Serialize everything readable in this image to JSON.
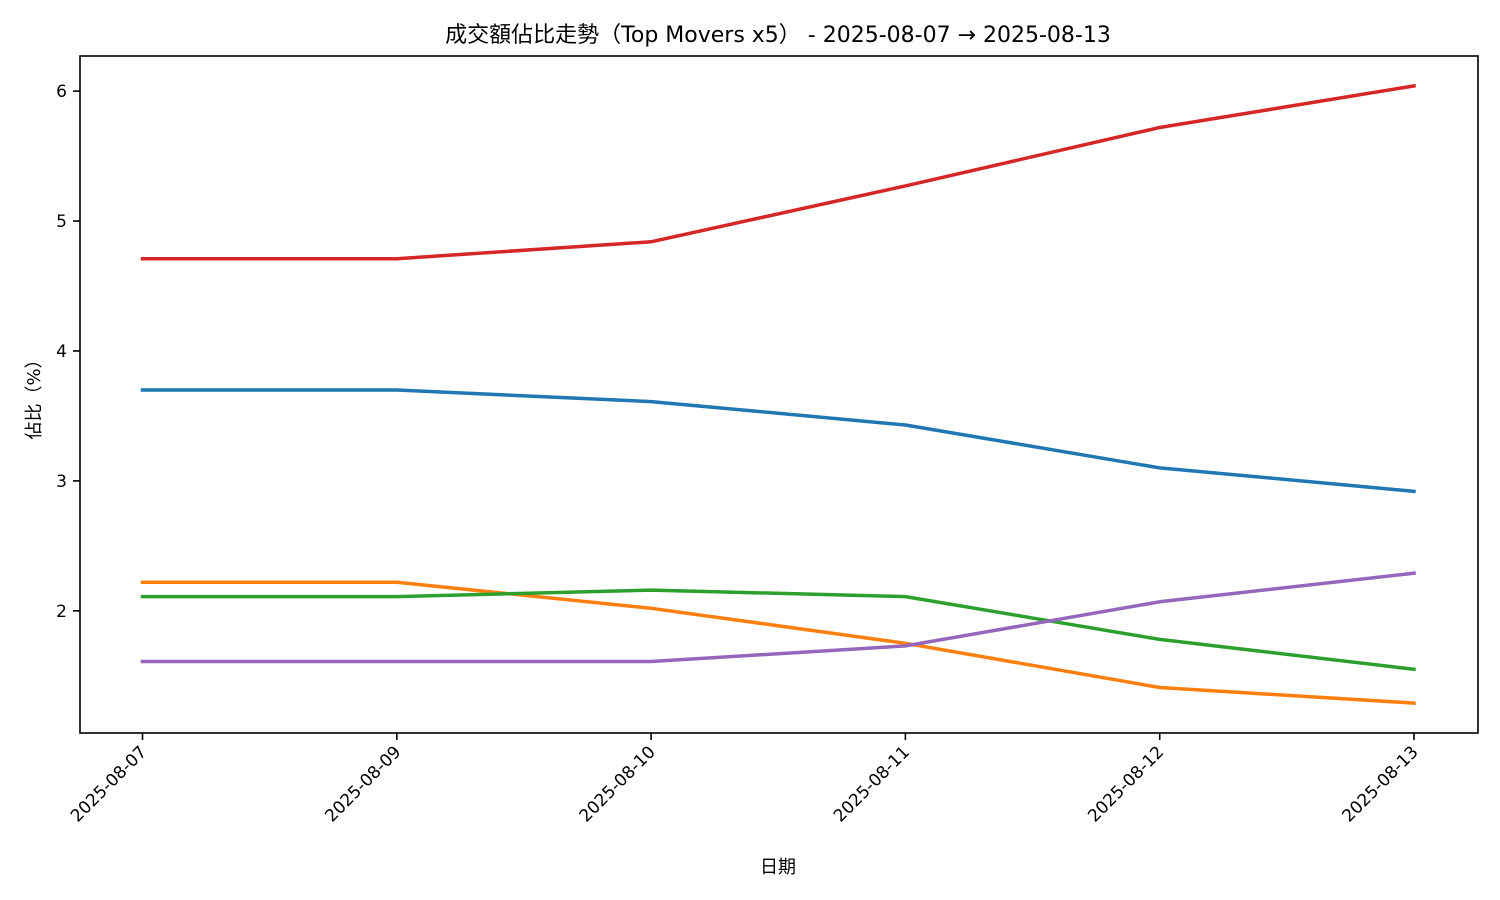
{
  "chart_data": {
    "type": "line",
    "title": "成交額佔比走勢（Top Movers x5） - 2025-08-07 → 2025-08-13",
    "xlabel": "日期",
    "ylabel": "佔比（%）",
    "categories": [
      "2025-08-07",
      "2025-08-09",
      "2025-08-10",
      "2025-08-11",
      "2025-08-12",
      "2025-08-13"
    ],
    "ylim": [
      1.06,
      6.27
    ],
    "yticks": [
      "2",
      "3",
      "4",
      "5",
      "6"
    ],
    "grid": false,
    "legend": "none",
    "series": [
      {
        "color": "#1f77b4",
        "values": [
          3.7,
          3.7,
          3.61,
          3.43,
          3.1,
          2.92
        ]
      },
      {
        "color": "#ff7f0e",
        "values": [
          2.22,
          2.22,
          2.02,
          1.75,
          1.41,
          1.29
        ]
      },
      {
        "color": "#2ca02c",
        "values": [
          2.11,
          2.11,
          2.16,
          2.11,
          1.78,
          1.55
        ]
      },
      {
        "color": "#d62728",
        "values": [
          4.71,
          4.71,
          4.84,
          5.27,
          5.72,
          6.04
        ]
      },
      {
        "color": "#9467bd",
        "values": [
          1.61,
          1.61,
          1.61,
          1.73,
          2.07,
          2.29
        ]
      }
    ]
  }
}
